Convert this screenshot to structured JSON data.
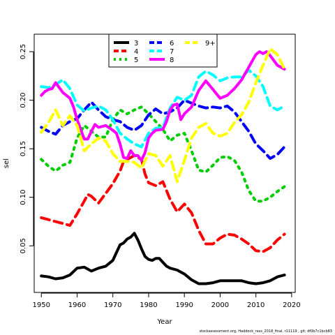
{
  "chart_data": {
    "type": "line",
    "title": "",
    "xlabel": "Year",
    "ylabel": "sel",
    "xlim": [
      1948,
      2021
    ],
    "ylim": [
      0.002,
      0.268
    ],
    "xticks": [
      1950,
      1960,
      1970,
      1980,
      1990,
      2000,
      2010,
      2020
    ],
    "yticks": [
      0.05,
      0.1,
      0.15,
      0.2,
      0.25
    ],
    "ytick_labels": [
      "0.05",
      "0.10",
      "0.15",
      "0.20",
      "0.25"
    ],
    "legend_position": "top-center",
    "grid": false,
    "series": [
      {
        "name": "3",
        "color": "#000000",
        "dash": "solid",
        "x": [
          1950,
          1952,
          1954,
          1956,
          1958,
          1960,
          1962,
          1964,
          1966,
          1968,
          1970,
          1971,
          1972,
          1973,
          1974,
          1975,
          1976,
          1977,
          1978,
          1979,
          1980,
          1981,
          1982,
          1983,
          1984,
          1985,
          1986,
          1988,
          1990,
          1992,
          1994,
          1996,
          1998,
          2000,
          2002,
          2004,
          2006,
          2008,
          2010,
          2012,
          2014,
          2016,
          2018
        ],
        "values": [
          0.019,
          0.018,
          0.016,
          0.017,
          0.02,
          0.027,
          0.028,
          0.024,
          0.027,
          0.029,
          0.035,
          0.043,
          0.051,
          0.053,
          0.057,
          0.059,
          0.063,
          0.056,
          0.047,
          0.039,
          0.036,
          0.035,
          0.037,
          0.037,
          0.033,
          0.029,
          0.027,
          0.025,
          0.021,
          0.015,
          0.011,
          0.011,
          0.012,
          0.014,
          0.014,
          0.014,
          0.014,
          0.012,
          0.011,
          0.012,
          0.014,
          0.018,
          0.02
        ]
      },
      {
        "name": "4",
        "color": "#ff0000",
        "dash": "dash",
        "x": [
          1950,
          1952,
          1954,
          1956,
          1958,
          1960,
          1962,
          1963,
          1964,
          1966,
          1968,
          1970,
          1972,
          1973,
          1974,
          1976,
          1978,
          1979,
          1980,
          1982,
          1984,
          1986,
          1988,
          1990,
          1992,
          1994,
          1996,
          1998,
          2000,
          2002,
          2004,
          2006,
          2008,
          2010,
          2012,
          2014,
          2016,
          2018
        ],
        "values": [
          0.079,
          0.077,
          0.075,
          0.073,
          0.071,
          0.083,
          0.096,
          0.103,
          0.101,
          0.094,
          0.104,
          0.114,
          0.127,
          0.137,
          0.139,
          0.143,
          0.139,
          0.124,
          0.115,
          0.112,
          0.116,
          0.098,
          0.085,
          0.093,
          0.084,
          0.066,
          0.052,
          0.052,
          0.058,
          0.062,
          0.061,
          0.057,
          0.052,
          0.045,
          0.044,
          0.048,
          0.056,
          0.062
        ]
      },
      {
        "name": "5",
        "color": "#00cd00",
        "dash": "dot",
        "x": [
          1950,
          1952,
          1954,
          1956,
          1958,
          1960,
          1962,
          1964,
          1966,
          1968,
          1970,
          1972,
          1974,
          1976,
          1978,
          1980,
          1982,
          1984,
          1986,
          1988,
          1990,
          1992,
          1994,
          1996,
          1998,
          2000,
          2002,
          2004,
          2006,
          2008,
          2010,
          2012,
          2014,
          2016,
          2018
        ],
        "values": [
          0.139,
          0.132,
          0.127,
          0.133,
          0.136,
          0.161,
          0.174,
          0.168,
          0.162,
          0.162,
          0.18,
          0.19,
          0.186,
          0.19,
          0.193,
          0.186,
          0.178,
          0.17,
          0.158,
          0.164,
          0.166,
          0.148,
          0.128,
          0.126,
          0.133,
          0.141,
          0.142,
          0.138,
          0.126,
          0.107,
          0.096,
          0.096,
          0.1,
          0.106,
          0.111
        ]
      },
      {
        "name": "6",
        "color": "#0000ff",
        "dash": "dash",
        "x": [
          1950,
          1952,
          1954,
          1956,
          1958,
          1960,
          1962,
          1964,
          1966,
          1968,
          1970,
          1972,
          1974,
          1976,
          1978,
          1980,
          1982,
          1984,
          1986,
          1988,
          1990,
          1992,
          1994,
          1996,
          1998,
          2000,
          2002,
          2004,
          2006,
          2008,
          2010,
          2012,
          2014,
          2016,
          2018
        ],
        "values": [
          0.172,
          0.168,
          0.165,
          0.174,
          0.178,
          0.181,
          0.19,
          0.198,
          0.19,
          0.183,
          0.18,
          0.178,
          0.172,
          0.169,
          0.174,
          0.185,
          0.191,
          0.186,
          0.188,
          0.192,
          0.2,
          0.197,
          0.194,
          0.192,
          0.193,
          0.192,
          0.194,
          0.188,
          0.178,
          0.168,
          0.155,
          0.148,
          0.14,
          0.144,
          0.152
        ]
      },
      {
        "name": "7",
        "color": "#00ffff",
        "dash": "dash",
        "x": [
          1950,
          1952,
          1954,
          1956,
          1958,
          1960,
          1962,
          1964,
          1966,
          1968,
          1970,
          1972,
          1974,
          1976,
          1978,
          1980,
          1982,
          1984,
          1986,
          1988,
          1990,
          1992,
          1994,
          1996,
          1998,
          2000,
          2002,
          2004,
          2006,
          2008,
          2010,
          2012,
          2014,
          2016,
          2018
        ],
        "values": [
          0.214,
          0.213,
          0.216,
          0.221,
          0.212,
          0.195,
          0.189,
          0.192,
          0.194,
          0.19,
          0.18,
          0.166,
          0.16,
          0.155,
          0.152,
          0.166,
          0.171,
          0.172,
          0.192,
          0.203,
          0.2,
          0.205,
          0.224,
          0.23,
          0.226,
          0.22,
          0.223,
          0.224,
          0.224,
          0.231,
          0.225,
          0.214,
          0.194,
          0.19,
          0.194
        ]
      },
      {
        "name": "8",
        "color": "#ff00ff",
        "dash": "solid",
        "x": [
          1950,
          1951,
          1952,
          1953,
          1954,
          1956,
          1958,
          1959,
          1960,
          1961,
          1962,
          1963,
          1964,
          1965,
          1966,
          1968,
          1970,
          1971,
          1972,
          1973,
          1974,
          1975,
          1976,
          1977,
          1978,
          1979,
          1980,
          1981,
          1982,
          1984,
          1985,
          1986,
          1987,
          1988,
          1989,
          1990,
          1992,
          1994,
          1996,
          1998,
          2000,
          2002,
          2004,
          2006,
          2008,
          2010,
          2011,
          2012,
          2013,
          2014,
          2016,
          2018
        ],
        "values": [
          0.205,
          0.209,
          0.211,
          0.212,
          0.218,
          0.208,
          0.202,
          0.193,
          0.18,
          0.17,
          0.16,
          0.16,
          0.168,
          0.175,
          0.172,
          0.174,
          0.169,
          0.166,
          0.155,
          0.141,
          0.14,
          0.148,
          0.143,
          0.143,
          0.138,
          0.146,
          0.161,
          0.166,
          0.169,
          0.17,
          0.178,
          0.19,
          0.195,
          0.196,
          0.18,
          0.186,
          0.193,
          0.21,
          0.22,
          0.211,
          0.202,
          0.205,
          0.212,
          0.221,
          0.234,
          0.247,
          0.25,
          0.248,
          0.25,
          0.246,
          0.236,
          0.232
        ]
      },
      {
        "name": "9+",
        "color": "#ffff00",
        "dash": "dash",
        "x": [
          1950,
          1952,
          1954,
          1956,
          1958,
          1960,
          1962,
          1964,
          1966,
          1968,
          1970,
          1972,
          1974,
          1976,
          1978,
          1980,
          1982,
          1984,
          1986,
          1988,
          1990,
          1992,
          1994,
          1996,
          1998,
          2000,
          2002,
          2004,
          2006,
          2008,
          2010,
          2012,
          2014,
          2016,
          2018
        ],
        "values": [
          0.167,
          0.177,
          0.19,
          0.174,
          0.184,
          0.174,
          0.148,
          0.155,
          0.161,
          0.158,
          0.145,
          0.137,
          0.137,
          0.136,
          0.13,
          0.145,
          0.143,
          0.132,
          0.143,
          0.116,
          0.138,
          0.161,
          0.172,
          0.176,
          0.166,
          0.163,
          0.166,
          0.177,
          0.185,
          0.198,
          0.218,
          0.236,
          0.253,
          0.247,
          0.232
        ]
      }
    ]
  },
  "footer": "stockassessment.org,  Haddock_rass_2018_final,  r11119 ,  git:  df0b7c1bcb83"
}
